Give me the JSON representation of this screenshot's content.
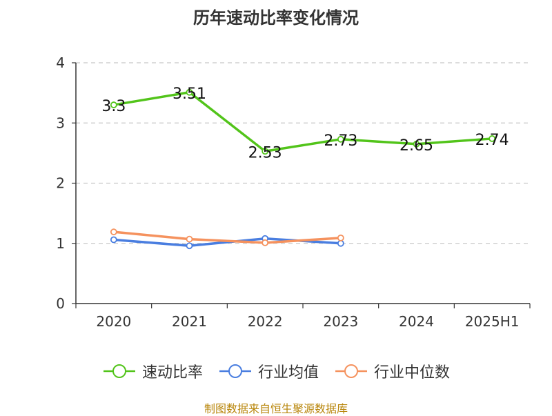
{
  "colors": {
    "速动比率": "#52c41a",
    "行业均值": "#4a7ee0",
    "行业中位数": "#f5925e"
  },
  "source_text": "制图数据来自恒生聚源数据库",
  "chart_data": {
    "type": "line",
    "title": "历年速动比率变化情况",
    "categories": [
      "2020",
      "2021",
      "2022",
      "2023",
      "2024",
      "2025H1"
    ],
    "ylim": [
      0,
      4
    ],
    "yticks": [
      0,
      1,
      2,
      3,
      4
    ],
    "grid": true,
    "legend_position": "bottom",
    "series": [
      {
        "name": "速动比率",
        "values": [
          3.3,
          3.51,
          2.53,
          2.73,
          2.65,
          2.74
        ],
        "labels": [
          "3.3",
          "3.51",
          "2.53",
          "2.73",
          "2.65",
          "2.74"
        ]
      },
      {
        "name": "行业均值",
        "values": [
          1.06,
          0.96,
          1.08,
          1.0,
          null,
          null
        ]
      },
      {
        "name": "行业中位数",
        "values": [
          1.19,
          1.07,
          1.01,
          1.09,
          null,
          null
        ]
      }
    ]
  }
}
